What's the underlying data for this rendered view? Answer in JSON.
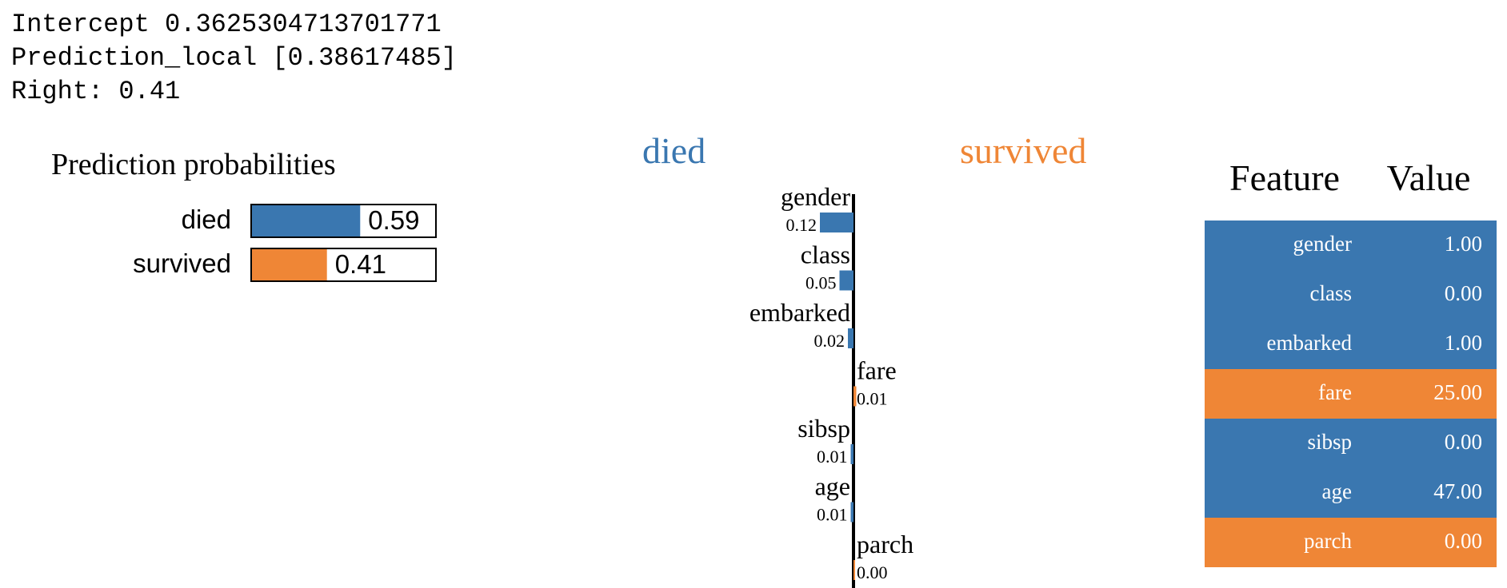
{
  "header_lines": {
    "intercept": "Intercept 0.3625304713701771",
    "prediction_local": "Prediction_local [0.38617485]",
    "right": "Right: 0.41"
  },
  "colors": {
    "died": "#3a77b0",
    "survived": "#ef8636",
    "axis": "#000000"
  },
  "chart_data": [
    {
      "type": "bar",
      "title": "Prediction probabilities",
      "categories": [
        "died",
        "survived"
      ],
      "values": [
        0.59,
        0.41
      ],
      "value_labels": [
        "0.59",
        "0.41"
      ],
      "xlim": [
        0,
        1
      ]
    },
    {
      "type": "bar",
      "orientation": "horizontal",
      "class_labels": {
        "negative": "died",
        "positive": "survived"
      },
      "categories": [
        "gender",
        "class",
        "embarked",
        "fare",
        "sibsp",
        "age",
        "parch"
      ],
      "values": [
        -0.12,
        -0.05,
        -0.02,
        0.01,
        -0.01,
        -0.01,
        0.0
      ],
      "value_labels": [
        "0.12",
        "0.05",
        "0.02",
        "0.01",
        "0.01",
        "0.01",
        "0.00"
      ]
    },
    {
      "type": "table",
      "columns": [
        "Feature",
        "Value"
      ],
      "rows": [
        {
          "feature": "gender",
          "value": "1.00",
          "class": "died"
        },
        {
          "feature": "class",
          "value": "0.00",
          "class": "died"
        },
        {
          "feature": "embarked",
          "value": "1.00",
          "class": "died"
        },
        {
          "feature": "fare",
          "value": "25.00",
          "class": "survived"
        },
        {
          "feature": "sibsp",
          "value": "0.00",
          "class": "died"
        },
        {
          "feature": "age",
          "value": "47.00",
          "class": "died"
        },
        {
          "feature": "parch",
          "value": "0.00",
          "class": "survived"
        }
      ]
    }
  ]
}
